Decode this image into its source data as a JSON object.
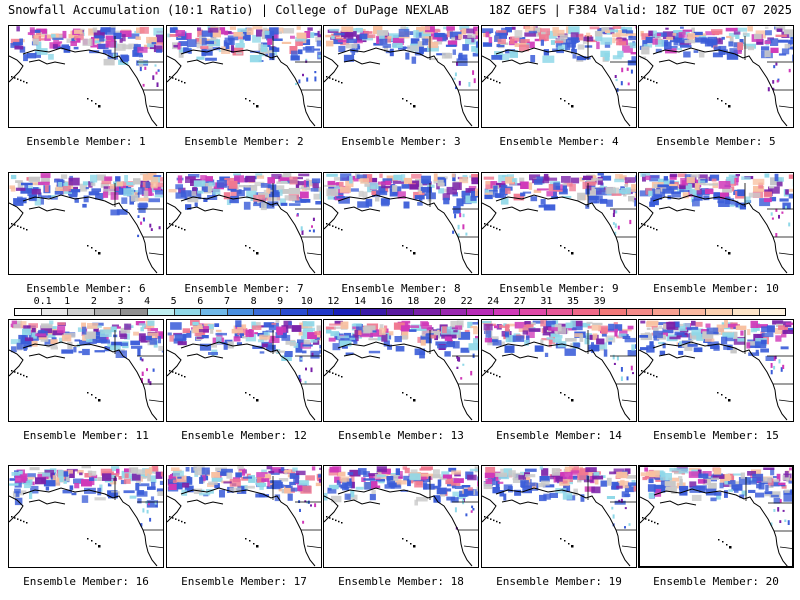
{
  "header": {
    "title_left": "Snowfall Accumulation (10:1 Ratio) | College of DuPage NEXLAB",
    "title_right": "18Z GEFS | F384 Valid: 18Z TUE OCT 07 2025"
  },
  "caption_prefix": "Ensemble Member: ",
  "members": [
    {
      "id": 1,
      "caption": "Ensemble Member: 1"
    },
    {
      "id": 2,
      "caption": "Ensemble Member: 2"
    },
    {
      "id": 3,
      "caption": "Ensemble Member: 3"
    },
    {
      "id": 4,
      "caption": "Ensemble Member: 4"
    },
    {
      "id": 5,
      "caption": "Ensemble Member: 5"
    },
    {
      "id": 6,
      "caption": "Ensemble Member: 6"
    },
    {
      "id": 7,
      "caption": "Ensemble Member: 7"
    },
    {
      "id": 8,
      "caption": "Ensemble Member: 8"
    },
    {
      "id": 9,
      "caption": "Ensemble Member: 9"
    },
    {
      "id": 10,
      "caption": "Ensemble Member: 10"
    },
    {
      "id": 11,
      "caption": "Ensemble Member: 11"
    },
    {
      "id": 12,
      "caption": "Ensemble Member: 12"
    },
    {
      "id": 13,
      "caption": "Ensemble Member: 13"
    },
    {
      "id": 14,
      "caption": "Ensemble Member: 14"
    },
    {
      "id": 15,
      "caption": "Ensemble Member: 15"
    },
    {
      "id": 16,
      "caption": "Ensemble Member: 16"
    },
    {
      "id": 17,
      "caption": "Ensemble Member: 17"
    },
    {
      "id": 18,
      "caption": "Ensemble Member: 18"
    },
    {
      "id": 19,
      "caption": "Ensemble Member: 19"
    },
    {
      "id": 20,
      "caption": "Ensemble Member: 20"
    }
  ],
  "selected_member": 20,
  "colorbar": {
    "labels": [
      "0.1",
      "1",
      "2",
      "3",
      "4",
      "5",
      "6",
      "7",
      "8",
      "9",
      "10",
      "12",
      "14",
      "16",
      "18",
      "20",
      "22",
      "24",
      "27",
      "31",
      "35",
      "39"
    ],
    "colors": [
      "#ffffff",
      "#e8e8e8",
      "#cfcfcf",
      "#b0b0b0",
      "#909090",
      "#bfeef0",
      "#8fd8e8",
      "#6fb8e8",
      "#4a90e0",
      "#3a6cd8",
      "#2a4cd0",
      "#2038c8",
      "#1a20b8",
      "#3a1aa8",
      "#5a1aa0",
      "#7a20a8",
      "#9a28b0",
      "#b82ab8",
      "#d038b8",
      "#e048a8",
      "#e85898",
      "#f06888",
      "#f27878",
      "#f48a88",
      "#f8a090",
      "#fab8a0",
      "#fcd0b0",
      "#fde4c8",
      "#fef2e0"
    ]
  },
  "map_colors": {
    "snow_low": "#c8c8c8",
    "snow_cyan": "#8fd8e8",
    "snow_blue": "#3a5cd8",
    "snow_purple": "#7a20a8",
    "snow_magenta": "#d038b8",
    "snow_pink": "#f07890",
    "snow_peach": "#f8c0a0"
  }
}
